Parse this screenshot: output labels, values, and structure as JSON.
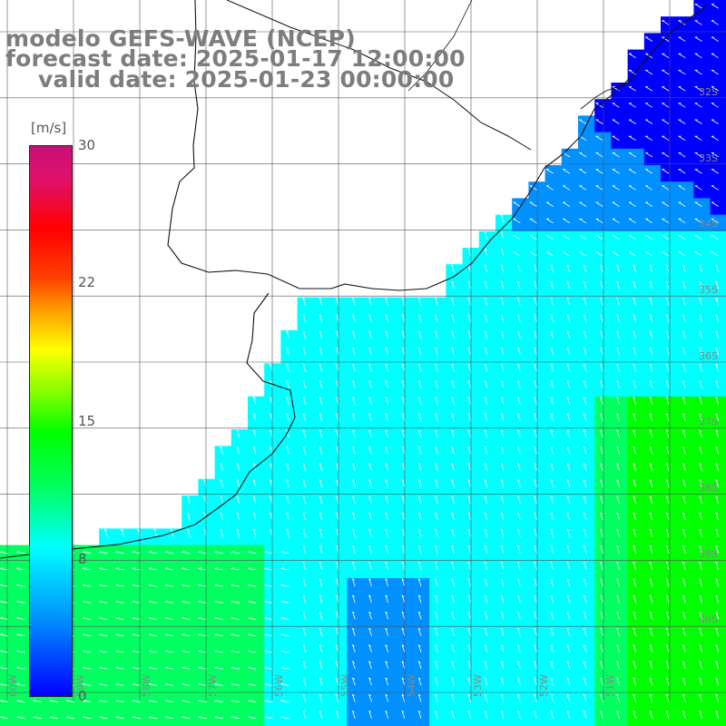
{
  "title": {
    "model": "modelo GEFS-WAVE (NCEP)",
    "forecast": "forecast date: 2025-01-17 12:00:00",
    "valid": "valid date: 2025-01-23 00:00:00"
  },
  "colorbar": {
    "unit": "[m/s]",
    "ticks": [
      "30",
      "22",
      "15",
      "8",
      "0"
    ],
    "min": 0,
    "max": 30
  },
  "lat_labels": [
    "32S",
    "33S",
    "34S",
    "35S",
    "36S",
    "37S",
    "38S",
    "39S",
    "40S"
  ],
  "lon_labels": [
    "60W",
    "59W",
    "58W",
    "57W",
    "56W",
    "55W",
    "54W",
    "53W",
    "52W",
    "51W"
  ],
  "colors": {
    "title": "#7d7d7d",
    "grid": "#555555",
    "coast": "#111111",
    "arrow": "#ffffff",
    "land": "#ffffff"
  }
}
